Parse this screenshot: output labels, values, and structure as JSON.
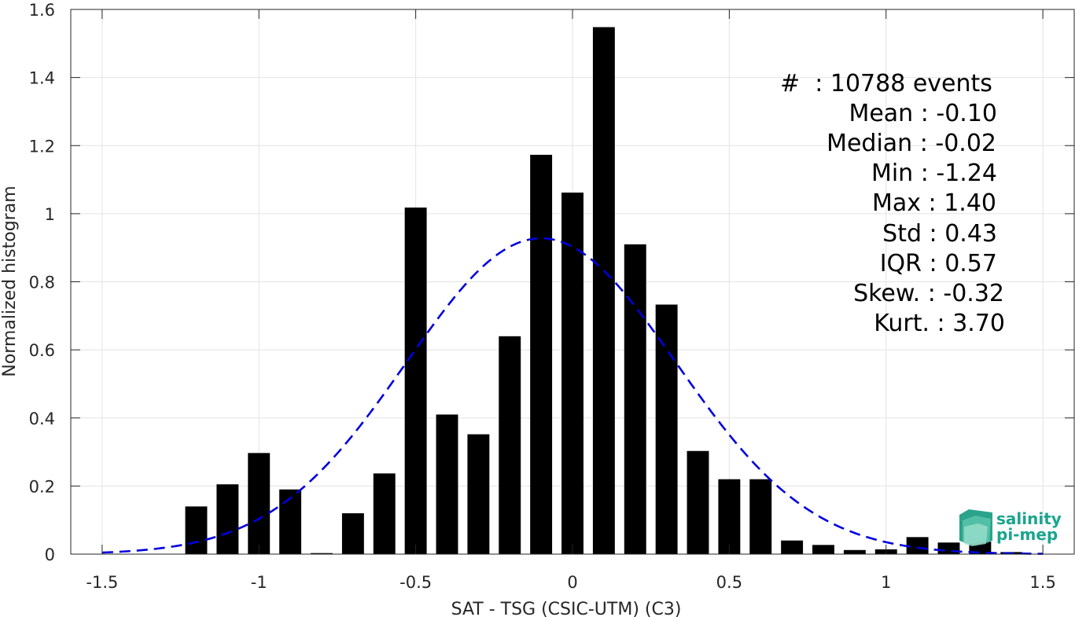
{
  "chart_data": {
    "type": "bar",
    "xlabel": "SAT - TSG (CSIC-UTM) (C3)",
    "ylabel": "Normalized histogram",
    "xlim": [
      -1.6,
      1.6
    ],
    "ylim": [
      0,
      1.6
    ],
    "xticks": [
      -1.5,
      -1,
      -0.5,
      0,
      0.5,
      1,
      1.5
    ],
    "xtick_labels": [
      "-1.5",
      "-1",
      "-0.5",
      "0",
      "0.5",
      "1",
      "1.5"
    ],
    "yticks": [
      0,
      0.2,
      0.4,
      0.6,
      0.8,
      1,
      1.2,
      1.4,
      1.6
    ],
    "ytick_labels": [
      "0",
      "0.2",
      "0.4",
      "0.6",
      "0.8",
      "1",
      "1.2",
      "1.4",
      "1.6"
    ],
    "grid": true,
    "bar_width": 0.07,
    "bar_color": "#000000",
    "bars": [
      {
        "x": -1.2,
        "y": 0.14
      },
      {
        "x": -1.1,
        "y": 0.205
      },
      {
        "x": -1.0,
        "y": 0.297
      },
      {
        "x": -0.9,
        "y": 0.19
      },
      {
        "x": -0.8,
        "y": 0.003
      },
      {
        "x": -0.7,
        "y": 0.12
      },
      {
        "x": -0.6,
        "y": 0.237
      },
      {
        "x": -0.5,
        "y": 1.018
      },
      {
        "x": -0.4,
        "y": 0.41
      },
      {
        "x": -0.3,
        "y": 0.352
      },
      {
        "x": -0.2,
        "y": 0.64
      },
      {
        "x": -0.1,
        "y": 1.173
      },
      {
        "x": 0.0,
        "y": 1.062
      },
      {
        "x": 0.1,
        "y": 1.548
      },
      {
        "x": 0.2,
        "y": 0.91
      },
      {
        "x": 0.3,
        "y": 0.733
      },
      {
        "x": 0.4,
        "y": 0.303
      },
      {
        "x": 0.5,
        "y": 0.22
      },
      {
        "x": 0.6,
        "y": 0.22
      },
      {
        "x": 0.7,
        "y": 0.04
      },
      {
        "x": 0.8,
        "y": 0.027
      },
      {
        "x": 0.9,
        "y": 0.012
      },
      {
        "x": 1.0,
        "y": 0.014
      },
      {
        "x": 1.1,
        "y": 0.05
      },
      {
        "x": 1.2,
        "y": 0.034
      },
      {
        "x": 1.3,
        "y": 0.037
      },
      {
        "x": 1.4,
        "y": 0.006
      }
    ],
    "fit_curve": {
      "style": "dashed",
      "color": "#0000dd",
      "mean": -0.1,
      "std": 0.43,
      "x_range": [
        -1.5,
        1.5
      ]
    },
    "stats": {
      "count": "#  : 10788 events",
      "mean": "Mean : -0.10",
      "median": "Median : -0.02",
      "min": "Min : -1.24",
      "max": "Max : 1.40",
      "std": "Std : 0.43",
      "iqr": "IQR : 0.57",
      "skew": "Skew. : -0.32",
      "kurt": "Kurt. : 3.70"
    }
  },
  "logo": {
    "line1": "salinity",
    "line2": "pi-mep",
    "color": "#1aa58e"
  }
}
